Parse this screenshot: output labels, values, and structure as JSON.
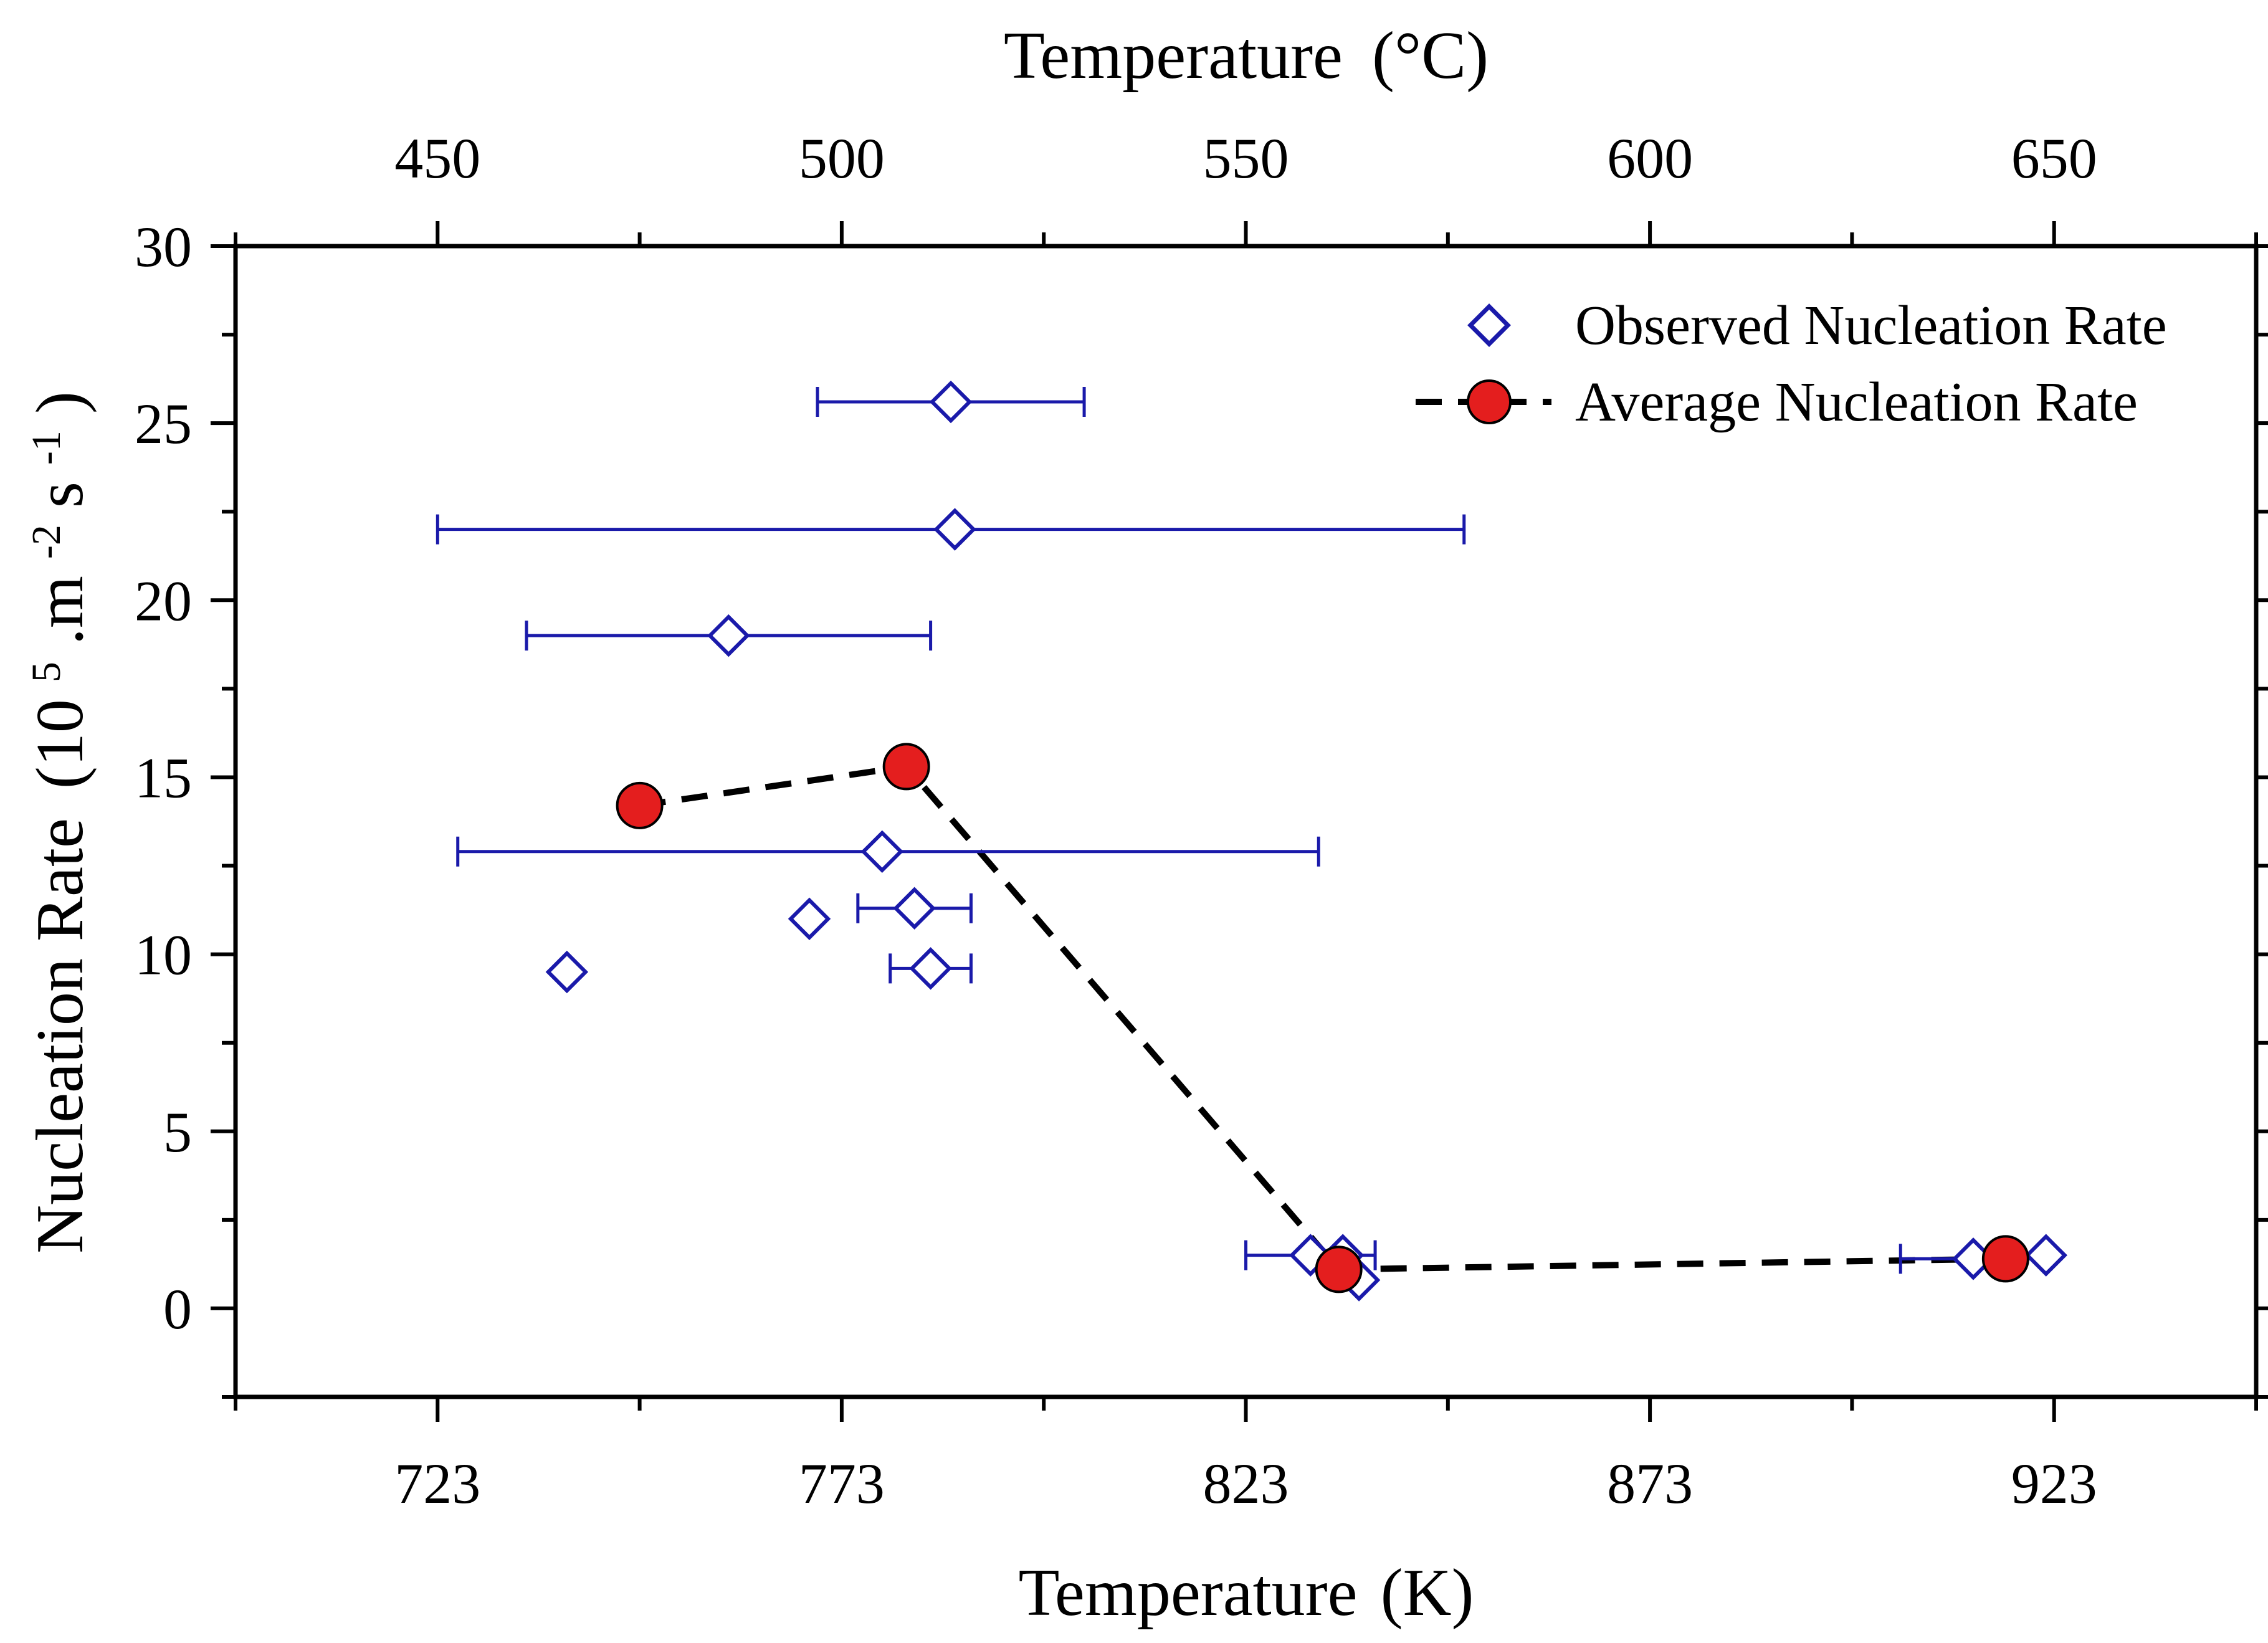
{
  "chart_data": {
    "type": "scatter",
    "x_axis_bottom": {
      "label": "Temperature",
      "unit": "(K)",
      "ticks": [
        723,
        773,
        823,
        873,
        923
      ],
      "range": [
        698,
        948
      ]
    },
    "x_axis_top": {
      "label": "Temperature",
      "unit": "(°C)",
      "ticks": [
        450,
        500,
        550,
        600,
        650
      ]
    },
    "y_axis": {
      "label": "Nucleation Rate",
      "unit_prefix": "(10",
      "unit_exp1": "5",
      "unit_mid": ".m",
      "unit_exp2": "-2",
      "unit_s": "s",
      "unit_exp3": "-1",
      "unit_close": ")",
      "ticks": [
        0,
        5,
        10,
        15,
        20,
        25,
        30
      ],
      "range": [
        -2.5,
        30
      ]
    },
    "legend": {
      "position": "top-right",
      "observed": "Observed Nucleation Rate",
      "average": "Average Nucleation Rate"
    },
    "colors": {
      "observed": "#1a1aaa",
      "average_fill": "#e41e1e",
      "average_line": "#000000"
    },
    "series": [
      {
        "name": "Observed Nucleation Rate",
        "points": [
          {
            "x": 786.5,
            "y": 25.6,
            "xmin": 770,
            "xmax": 803
          },
          {
            "x": 787,
            "y": 22.0,
            "xmin": 723,
            "xmax": 850
          },
          {
            "x": 759,
            "y": 19.0,
            "xmin": 734,
            "xmax": 784
          },
          {
            "x": 781,
            "y": 15.3
          },
          {
            "x": 778,
            "y": 12.9,
            "xmin": 725.5,
            "xmax": 832
          },
          {
            "x": 769,
            "y": 11.0
          },
          {
            "x": 782,
            "y": 11.3,
            "xmin": 775,
            "xmax": 789
          },
          {
            "x": 784,
            "y": 9.6,
            "xmin": 779,
            "xmax": 789
          },
          {
            "x": 739,
            "y": 9.5
          },
          {
            "x": 831,
            "y": 1.5,
            "xmin": 823,
            "xmax": 839
          },
          {
            "x": 835,
            "y": 1.5
          },
          {
            "x": 837,
            "y": 0.8
          },
          {
            "x": 913,
            "y": 1.4,
            "xmin": 904,
            "xmax": 922
          },
          {
            "x": 922,
            "y": 1.5
          }
        ]
      },
      {
        "name": "Average Nucleation Rate",
        "points": [
          {
            "x": 748,
            "y": 14.2
          },
          {
            "x": 781,
            "y": 15.3
          },
          {
            "x": 834.5,
            "y": 1.1
          },
          {
            "x": 917,
            "y": 1.4
          }
        ]
      }
    ]
  }
}
